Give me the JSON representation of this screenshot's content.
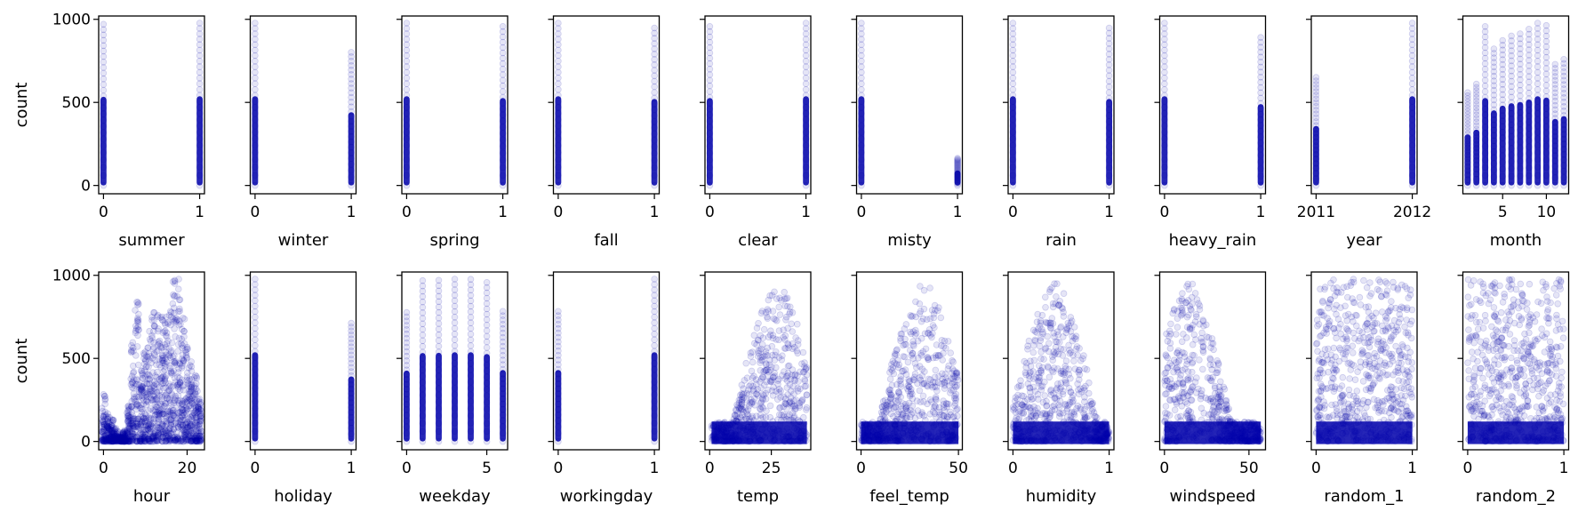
{
  "chart_data": {
    "type": "scatter",
    "ylabel": "count",
    "ylim": [
      -50,
      1020
    ],
    "yticks": [
      0,
      500,
      1000
    ],
    "marker_color": "#0000aa",
    "marker_alpha": 0.1,
    "panels": [
      {
        "name": "summer",
        "xlabel": "summer",
        "xlim": [
          -0.05,
          1.05
        ],
        "xticks": [
          0,
          1
        ],
        "ytick_labels": true,
        "points": [
          {
            "x": 0,
            "y_range": [
              0,
              970
            ]
          },
          {
            "x": 1,
            "y_range": [
              0,
              977
            ]
          }
        ]
      },
      {
        "name": "winter",
        "xlabel": "winter",
        "xlim": [
          -0.05,
          1.05
        ],
        "xticks": [
          0,
          1
        ],
        "ytick_labels": false,
        "points": [
          {
            "x": 0,
            "y_range": [
              0,
              977
            ]
          },
          {
            "x": 1,
            "y_range": [
              0,
              801
            ]
          }
        ]
      },
      {
        "name": "spring",
        "xlabel": "spring",
        "xlim": [
          -0.05,
          1.05
        ],
        "xticks": [
          0,
          1
        ],
        "ytick_labels": false,
        "points": [
          {
            "x": 0,
            "y_range": [
              0,
              977
            ]
          },
          {
            "x": 1,
            "y_range": [
              0,
              957
            ]
          }
        ]
      },
      {
        "name": "fall",
        "xlabel": "fall",
        "xlim": [
          -0.05,
          1.05
        ],
        "xticks": [
          0,
          1
        ],
        "ytick_labels": false,
        "points": [
          {
            "x": 0,
            "y_range": [
              0,
              977
            ]
          },
          {
            "x": 1,
            "y_range": [
              0,
              948
            ]
          }
        ]
      },
      {
        "name": "clear",
        "xlabel": "clear",
        "xlim": [
          -0.05,
          1.05
        ],
        "xticks": [
          0,
          1
        ],
        "ytick_labels": false,
        "points": [
          {
            "x": 0,
            "y_range": [
              0,
              957
            ]
          },
          {
            "x": 1,
            "y_range": [
              0,
              977
            ]
          }
        ]
      },
      {
        "name": "misty",
        "xlabel": "misty",
        "xlim": [
          -0.05,
          1.05
        ],
        "xticks": [
          0,
          1
        ],
        "ytick_labels": false,
        "points": [
          {
            "x": 0,
            "y_range": [
              0,
              977
            ]
          },
          {
            "x": 1,
            "y_range": [
              0,
              164
            ]
          }
        ]
      },
      {
        "name": "rain",
        "xlabel": "rain",
        "xlim": [
          -0.05,
          1.05
        ],
        "xticks": [
          0,
          1
        ],
        "ytick_labels": false,
        "points": [
          {
            "x": 0,
            "y_range": [
              0,
              977
            ]
          },
          {
            "x": 1,
            "y_range": [
              0,
              948
            ]
          }
        ]
      },
      {
        "name": "heavy_rain",
        "xlabel": "heavy_rain",
        "xlim": [
          -0.05,
          1.05
        ],
        "xticks": [
          0,
          1
        ],
        "ytick_labels": false,
        "points": [
          {
            "x": 0,
            "y_range": [
              0,
              977
            ]
          },
          {
            "x": 1,
            "y_range": [
              0,
              891
            ]
          }
        ]
      },
      {
        "name": "year",
        "xlabel": "year",
        "xlim": [
          2010.95,
          2012.05
        ],
        "xticks": [
          2011,
          2012
        ],
        "ytick_labels": false,
        "points": [
          {
            "x": 2011,
            "y_range": [
              0,
              651
            ]
          },
          {
            "x": 2012,
            "y_range": [
              0,
              977
            ]
          }
        ]
      },
      {
        "name": "month",
        "xlabel": "month",
        "xlim": [
          0.45,
          12.55
        ],
        "xticks": [
          5,
          10
        ],
        "ytick_labels": false,
        "points": [
          {
            "x": 1,
            "y_range": [
              0,
              559
            ]
          },
          {
            "x": 2,
            "y_range": [
              0,
              610
            ]
          },
          {
            "x": 3,
            "y_range": [
              0,
              957
            ]
          },
          {
            "x": 4,
            "y_range": [
              0,
              822
            ]
          },
          {
            "x": 5,
            "y_range": [
              0,
              873
            ]
          },
          {
            "x": 6,
            "y_range": [
              0,
              900
            ]
          },
          {
            "x": 7,
            "y_range": [
              0,
              913
            ]
          },
          {
            "x": 8,
            "y_range": [
              0,
              941
            ]
          },
          {
            "x": 9,
            "y_range": [
              0,
              977
            ]
          },
          {
            "x": 10,
            "y_range": [
              0,
              963
            ]
          },
          {
            "x": 11,
            "y_range": [
              0,
              729
            ]
          },
          {
            "x": 12,
            "y_range": [
              0,
              759
            ]
          }
        ]
      },
      {
        "name": "hour",
        "xlabel": "hour",
        "xlim": [
          -1.15,
          24.15
        ],
        "xticks": [
          0,
          20
        ],
        "ytick_labels": true,
        "hour_profile": [
          [
            0,
            283
          ],
          [
            1,
            168
          ],
          [
            2,
            132
          ],
          [
            3,
            79
          ],
          [
            4,
            28
          ],
          [
            5,
            66
          ],
          [
            6,
            213
          ],
          [
            7,
            596
          ],
          [
            8,
            839
          ],
          [
            9,
            426
          ],
          [
            10,
            539
          ],
          [
            11,
            663
          ],
          [
            12,
            776
          ],
          [
            13,
            760
          ],
          [
            14,
            750
          ],
          [
            15,
            750
          ],
          [
            16,
            783
          ],
          [
            17,
            970
          ],
          [
            18,
            977
          ],
          [
            19,
            743
          ],
          [
            20,
            567
          ],
          [
            21,
            480
          ],
          [
            22,
            397
          ],
          [
            23,
            256
          ]
        ]
      },
      {
        "name": "holiday",
        "xlabel": "holiday",
        "xlim": [
          -0.05,
          1.05
        ],
        "xticks": [
          0,
          1
        ],
        "ytick_labels": false,
        "points": [
          {
            "x": 0,
            "y_range": [
              0,
              977
            ]
          },
          {
            "x": 1,
            "y_range": [
              0,
              712
            ]
          }
        ]
      },
      {
        "name": "weekday",
        "xlabel": "weekday",
        "xlim": [
          -0.3,
          6.3
        ],
        "xticks": [
          0,
          5
        ],
        "ytick_labels": false,
        "points": [
          {
            "x": 0,
            "y_range": [
              0,
              776
            ]
          },
          {
            "x": 1,
            "y_range": [
              0,
              968
            ]
          },
          {
            "x": 2,
            "y_range": [
              0,
              970
            ]
          },
          {
            "x": 3,
            "y_range": [
              0,
              977
            ]
          },
          {
            "x": 4,
            "y_range": [
              0,
              976
            ]
          },
          {
            "x": 5,
            "y_range": [
              0,
              957
            ]
          },
          {
            "x": 6,
            "y_range": [
              0,
              783
            ]
          }
        ]
      },
      {
        "name": "workingday",
        "xlabel": "workingday",
        "xlim": [
          -0.05,
          1.05
        ],
        "xticks": [
          0,
          1
        ],
        "ytick_labels": false,
        "points": [
          {
            "x": 0,
            "y_range": [
              0,
              783
            ]
          },
          {
            "x": 1,
            "y_range": [
              0,
              977
            ]
          }
        ]
      },
      {
        "name": "temp",
        "xlabel": "temp",
        "xlim": [
          -1.9,
          41.0
        ],
        "xticks": [
          0,
          25
        ],
        "ytick_labels": false,
        "continuous": {
          "x_range": [
            0.8,
            39.4
          ],
          "peak_x": 28,
          "peak_y": 977
        }
      },
      {
        "name": "feel_temp",
        "xlabel": "feel_temp",
        "xlim": [
          -2.3,
          52.0
        ],
        "xticks": [
          0,
          50
        ],
        "ytick_labels": false,
        "continuous": {
          "x_range": [
            0,
            50
          ],
          "peak_x": 33,
          "peak_y": 977
        }
      },
      {
        "name": "humidity",
        "xlabel": "humidity",
        "xlim": [
          -0.05,
          1.05
        ],
        "xticks": [
          0,
          1
        ],
        "ytick_labels": false,
        "continuous": {
          "x_range": [
            0,
            1
          ],
          "peak_x": 0.45,
          "peak_y": 977
        }
      },
      {
        "name": "windspeed",
        "xlabel": "windspeed",
        "xlim": [
          -2.8,
          59.8
        ],
        "xticks": [
          0,
          50
        ],
        "ytick_labels": false,
        "continuous": {
          "x_range": [
            0,
            57
          ],
          "peak_x": 15,
          "peak_y": 977
        }
      },
      {
        "name": "random_1",
        "xlabel": "random_1",
        "xlim": [
          -0.05,
          1.05
        ],
        "xticks": [
          0,
          1
        ],
        "ytick_labels": false,
        "continuous": {
          "x_range": [
            0,
            1
          ],
          "peak_x": 0.5,
          "peak_y": 977
        }
      },
      {
        "name": "random_2",
        "xlabel": "random_2",
        "xlim": [
          -0.05,
          1.05
        ],
        "xticks": [
          0,
          1
        ],
        "ytick_labels": false,
        "continuous": {
          "x_range": [
            0,
            1
          ],
          "peak_x": 0.5,
          "peak_y": 977
        }
      }
    ]
  }
}
